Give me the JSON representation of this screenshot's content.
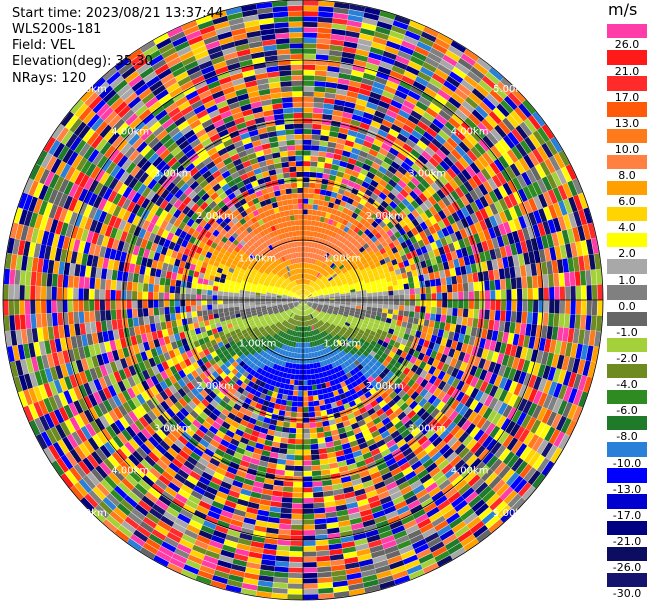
{
  "header": {
    "start_time": "Start time: 2023/08/21 13:37:44",
    "instrument": "WLS200s-181",
    "field": "Field: VEL",
    "elevation": "Elevation(deg): 35.30",
    "nrays": "NRays: 120"
  },
  "chart_data": {
    "type": "heatmap",
    "projection": "polar-ppi",
    "field": "VEL",
    "units": "m/s",
    "nrays": 120,
    "elevation_deg": 35.3,
    "range_rings_km": [
      1.0,
      2.0,
      3.0,
      4.0,
      5.0
    ],
    "range_ring_labels": [
      "1.00km",
      "2.00km",
      "3.00km",
      "4.00km",
      "5.00km"
    ],
    "max_range_km": 5.0,
    "pattern": "Velocity field: positive (toward warm colors, up to ~10 m/s) north of the center, negative (blue, down to ~-13 m/s) south of center, near-zero gray along the east-west axis within ~1.5 km; beyond ~1.8 km the field is dominated by random noise across all classes.",
    "colorbar": {
      "unit_label": "m/s",
      "bins": [
        {
          "label": "26.0",
          "color": "#ff3ca8"
        },
        {
          "label": "21.0",
          "color": "#ff1a1a"
        },
        {
          "label": "17.0",
          "color": "#ff2a2a"
        },
        {
          "label": "13.0",
          "color": "#ff5a0a"
        },
        {
          "label": "10.0",
          "color": "#ff7a1a"
        },
        {
          "label": "8.0",
          "color": "#ff8040"
        },
        {
          "label": "6.0",
          "color": "#ffa000"
        },
        {
          "label": "4.0",
          "color": "#ffd400"
        },
        {
          "label": "2.0",
          "color": "#ffff00"
        },
        {
          "label": "1.0",
          "color": "#a8a8a8"
        },
        {
          "label": "0.0",
          "color": "#808080"
        },
        {
          "label": "-1.0",
          "color": "#666666"
        },
        {
          "label": "-2.0",
          "color": "#a4d13a"
        },
        {
          "label": "-4.0",
          "color": "#6e8b22"
        },
        {
          "label": "-6.0",
          "color": "#2e8b22"
        },
        {
          "label": "-8.0",
          "color": "#1f7a2a"
        },
        {
          "label": "-10.0",
          "color": "#2a7fd8"
        },
        {
          "label": "-13.0",
          "color": "#0000ff"
        },
        {
          "label": "-17.0",
          "color": "#0000d0"
        },
        {
          "label": "-21.0",
          "color": "#000080"
        },
        {
          "label": "-26.0",
          "color": "#0c0c60"
        },
        {
          "label": "-30.0",
          "color": "#14146e"
        }
      ]
    }
  }
}
